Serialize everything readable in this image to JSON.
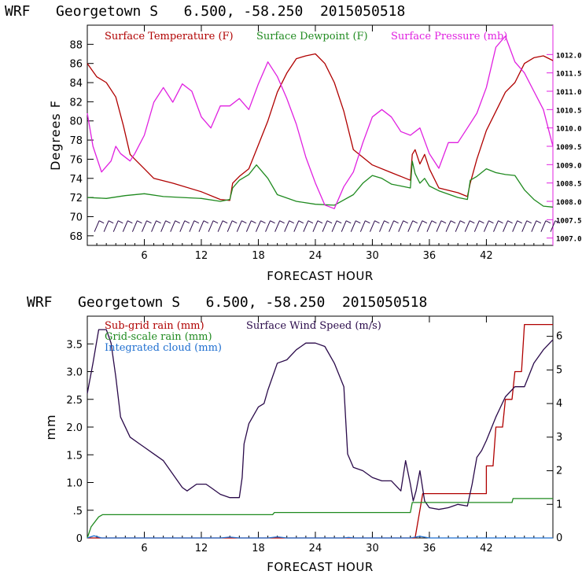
{
  "colors": {
    "red": "#b00000",
    "green": "#1f8a1f",
    "magenta": "#e020e0",
    "purple": "#2a0a4a",
    "blue": "#1f6fd0",
    "black": "#000000"
  },
  "chart_data": [
    {
      "type": "line",
      "title": "WRF   Georgetown S   6.500, -58.250  2015050518",
      "xlabel": "FORECAST HOUR",
      "ylabel": "Degrees F",
      "xlim": [
        0,
        49
      ],
      "ylim": [
        67,
        90
      ],
      "y2lim": [
        1006.8,
        1012.8
      ],
      "x_ticks": [
        "6",
        "12",
        "18",
        "24",
        "30",
        "36",
        "42"
      ],
      "y_ticks": [
        "68",
        "70",
        "72",
        "74",
        "76",
        "78",
        "80",
        "82",
        "84",
        "86",
        "88"
      ],
      "y2_ticks": [
        "1007.0",
        "1007.5",
        "1008.0",
        "1008.5",
        "1009.0",
        "1009.5",
        "1010.0",
        "1010.5",
        "1011.0",
        "1011.5",
        "1012.0"
      ],
      "legend": [
        "Surface Temperature (F)",
        "Surface Dewpoint (F)",
        "Surface Pressure (mb)"
      ],
      "series": [
        {
          "name": "Surface Temperature (F)",
          "color": "red",
          "axis": "left",
          "points": [
            [
              0,
              86
            ],
            [
              1,
              84.6
            ],
            [
              2,
              84
            ],
            [
              3,
              82.5
            ],
            [
              3.8,
              79.5
            ],
            [
              4.5,
              76.5
            ],
            [
              5,
              76
            ],
            [
              6,
              75
            ],
            [
              7,
              74
            ],
            [
              9,
              73.5
            ],
            [
              12,
              72.6
            ],
            [
              14,
              71.8
            ],
            [
              15,
              71.7
            ],
            [
              15.3,
              73.5
            ],
            [
              16,
              74.2
            ],
            [
              17,
              75
            ],
            [
              18,
              77.5
            ],
            [
              19,
              80
            ],
            [
              20,
              83
            ],
            [
              21,
              85
            ],
            [
              22,
              86.5
            ],
            [
              23,
              86.8
            ],
            [
              24,
              87
            ],
            [
              25,
              86
            ],
            [
              26,
              84
            ],
            [
              27,
              81
            ],
            [
              28,
              77
            ],
            [
              30,
              75.4
            ],
            [
              32,
              74.6
            ],
            [
              33,
              74.2
            ],
            [
              34,
              73.8
            ],
            [
              34.2,
              76.5
            ],
            [
              34.5,
              77
            ],
            [
              35,
              75.5
            ],
            [
              35.5,
              76.5
            ],
            [
              36,
              75
            ],
            [
              37,
              73
            ],
            [
              39,
              72.5
            ],
            [
              40,
              72.1
            ],
            [
              40.3,
              73.5
            ],
            [
              41,
              76
            ],
            [
              42,
              79
            ],
            [
              43,
              81
            ],
            [
              44,
              83
            ],
            [
              45,
              84
            ],
            [
              46,
              86
            ],
            [
              47,
              86.6
            ],
            [
              48,
              86.8
            ],
            [
              49,
              86.3
            ]
          ]
        },
        {
          "name": "Surface Dewpoint (F)",
          "color": "green",
          "axis": "left",
          "points": [
            [
              0,
              72
            ],
            [
              2,
              71.9
            ],
            [
              4,
              72.2
            ],
            [
              6,
              72.4
            ],
            [
              8,
              72.1
            ],
            [
              10,
              72
            ],
            [
              12,
              71.9
            ],
            [
              14,
              71.6
            ],
            [
              15,
              71.8
            ],
            [
              15.3,
              73
            ],
            [
              16,
              73.8
            ],
            [
              17,
              74.4
            ],
            [
              17.8,
              75.4
            ],
            [
              19,
              74
            ],
            [
              20,
              72.3
            ],
            [
              22,
              71.6
            ],
            [
              24,
              71.3
            ],
            [
              26,
              71.2
            ],
            [
              28,
              72.3
            ],
            [
              29,
              73.5
            ],
            [
              30,
              74.3
            ],
            [
              31,
              74
            ],
            [
              32,
              73.4
            ],
            [
              33,
              73.2
            ],
            [
              34,
              73
            ],
            [
              34.2,
              75.8
            ],
            [
              34.5,
              74.5
            ],
            [
              35,
              73.5
            ],
            [
              35.5,
              74
            ],
            [
              36,
              73.2
            ],
            [
              37,
              72.7
            ],
            [
              39,
              72
            ],
            [
              40,
              71.8
            ],
            [
              40.3,
              73.8
            ],
            [
              41,
              74.2
            ],
            [
              42,
              75
            ],
            [
              43,
              74.6
            ],
            [
              44,
              74.4
            ],
            [
              45,
              74.3
            ],
            [
              46,
              72.8
            ],
            [
              47,
              71.8
            ],
            [
              48,
              71.1
            ],
            [
              49,
              71
            ]
          ]
        },
        {
          "name": "Surface Pressure (mb)",
          "color": "magenta",
          "axis": "right",
          "points": [
            [
              0,
              1010.4
            ],
            [
              0.6,
              1009.5
            ],
            [
              1.5,
              1008.8
            ],
            [
              2.5,
              1009.1
            ],
            [
              3,
              1009.5
            ],
            [
              3.5,
              1009.3
            ],
            [
              4.5,
              1009.1
            ],
            [
              5,
              1009.3
            ],
            [
              6,
              1009.8
            ],
            [
              7,
              1010.7
            ],
            [
              8,
              1011.1
            ],
            [
              9,
              1010.7
            ],
            [
              10,
              1011.2
            ],
            [
              11,
              1011
            ],
            [
              12,
              1010.3
            ],
            [
              13,
              1010
            ],
            [
              14,
              1010.6
            ],
            [
              15,
              1010.6
            ],
            [
              16,
              1010.8
            ],
            [
              17,
              1010.5
            ],
            [
              18,
              1011.2
            ],
            [
              19,
              1011.8
            ],
            [
              20,
              1011.4
            ],
            [
              21,
              1010.8
            ],
            [
              22,
              1010.1
            ],
            [
              23,
              1009.2
            ],
            [
              24,
              1008.5
            ],
            [
              25,
              1007.9
            ],
            [
              26,
              1007.8
            ],
            [
              27,
              1008.4
            ],
            [
              28,
              1008.8
            ],
            [
              29,
              1009.6
            ],
            [
              30,
              1010.3
            ],
            [
              31,
              1010.5
            ],
            [
              32,
              1010.3
            ],
            [
              33,
              1009.9
            ],
            [
              34,
              1009.8
            ],
            [
              35,
              1010
            ],
            [
              36,
              1009.3
            ],
            [
              37,
              1008.9
            ],
            [
              38,
              1009.6
            ],
            [
              39,
              1009.6
            ],
            [
              40,
              1010
            ],
            [
              41,
              1010.4
            ],
            [
              42,
              1011.1
            ],
            [
              43,
              1012.2
            ],
            [
              44,
              1012.5
            ],
            [
              45,
              1011.8
            ],
            [
              46,
              1011.5
            ],
            [
              47,
              1011
            ],
            [
              48,
              1010.5
            ],
            [
              49,
              1009.5
            ]
          ]
        }
      ],
      "wind_barbs": {
        "y": 69,
        "x_start": 1,
        "x_end": 49,
        "step": 1
      }
    },
    {
      "type": "line",
      "title": "WRF   Georgetown S   6.500, -58.250  2015050518",
      "xlabel": "FORECAST HOUR",
      "ylabel": "mm",
      "xlim": [
        0,
        49
      ],
      "ylim": [
        0,
        4.0
      ],
      "y2lim": [
        0,
        6.6
      ],
      "x_ticks": [
        "6",
        "12",
        "18",
        "24",
        "30",
        "36",
        "42"
      ],
      "y_ticks": [
        "0",
        ".5",
        "1.0",
        "1.5",
        "2.0",
        "2.5",
        "3.0",
        "3.5"
      ],
      "y2_ticks": [
        "0",
        "1",
        "2",
        "3",
        "4",
        "5",
        "6"
      ],
      "legend": [
        "Sub-grid rain (mm)",
        "Surface Wind Speed (m/s)",
        "Grid-scale rain (mm)",
        "Integrated cloud (mm)"
      ],
      "series": [
        {
          "name": "Sub-grid rain (mm)",
          "color": "red",
          "axis": "left",
          "points": [
            [
              0,
              0
            ],
            [
              34.5,
              0
            ],
            [
              35.3,
              0.8
            ],
            [
              36,
              0.8
            ],
            [
              42,
              0.8
            ],
            [
              42,
              1.3
            ],
            [
              42.7,
              1.3
            ],
            [
              43,
              2.0
            ],
            [
              43.7,
              2.0
            ],
            [
              44,
              2.5
            ],
            [
              44.7,
              2.5
            ],
            [
              45,
              3.0
            ],
            [
              45.7,
              3.0
            ],
            [
              46,
              3.85
            ],
            [
              49,
              3.85
            ]
          ]
        },
        {
          "name": "Surface Wind Speed (m/s)",
          "color": "purple",
          "axis": "right",
          "points": [
            [
              0,
              4.3
            ],
            [
              0.6,
              5.2
            ],
            [
              1.2,
              6.2
            ],
            [
              2,
              6.2
            ],
            [
              2.5,
              5.8
            ],
            [
              3,
              4.8
            ],
            [
              3.5,
              3.6
            ],
            [
              4.5,
              3.0
            ],
            [
              5.5,
              2.8
            ],
            [
              6,
              2.7
            ],
            [
              7,
              2.5
            ],
            [
              8,
              2.3
            ],
            [
              9,
              1.9
            ],
            [
              10,
              1.5
            ],
            [
              10.5,
              1.4
            ],
            [
              11.5,
              1.6
            ],
            [
              12.5,
              1.6
            ],
            [
              13,
              1.5
            ],
            [
              14,
              1.3
            ],
            [
              15,
              1.2
            ],
            [
              16,
              1.2
            ],
            [
              16.3,
              1.8
            ],
            [
              16.5,
              2.8
            ],
            [
              17,
              3.4
            ],
            [
              18,
              3.9
            ],
            [
              18.6,
              4.0
            ],
            [
              19,
              4.4
            ],
            [
              20,
              5.2
            ],
            [
              21,
              5.3
            ],
            [
              22,
              5.6
            ],
            [
              23,
              5.8
            ],
            [
              24,
              5.8
            ],
            [
              25,
              5.7
            ],
            [
              26,
              5.2
            ],
            [
              27,
              4.5
            ],
            [
              27.4,
              2.5
            ],
            [
              28,
              2.1
            ],
            [
              29,
              2.0
            ],
            [
              30,
              1.8
            ],
            [
              31,
              1.7
            ],
            [
              32,
              1.7
            ],
            [
              33,
              1.4
            ],
            [
              33.5,
              2.3
            ],
            [
              34,
              1.6
            ],
            [
              34.3,
              1.1
            ],
            [
              34.6,
              1.4
            ],
            [
              35,
              2.0
            ],
            [
              35.5,
              1.1
            ],
            [
              36,
              0.9
            ],
            [
              37,
              0.85
            ],
            [
              38,
              0.9
            ],
            [
              39,
              1.0
            ],
            [
              40,
              0.95
            ],
            [
              40.5,
              1.6
            ],
            [
              41,
              2.4
            ],
            [
              41.5,
              2.6
            ],
            [
              42,
              2.9
            ],
            [
              43,
              3.6
            ],
            [
              44,
              4.2
            ],
            [
              45,
              4.5
            ],
            [
              46,
              4.5
            ],
            [
              47,
              5.2
            ],
            [
              48,
              5.6
            ],
            [
              49,
              5.9
            ]
          ]
        },
        {
          "name": "Grid-scale rain (mm)",
          "color": "green",
          "axis": "left",
          "points": [
            [
              0,
              0
            ],
            [
              0.4,
              0.2
            ],
            [
              1.2,
              0.38
            ],
            [
              1.6,
              0.42
            ],
            [
              14,
              0.42
            ],
            [
              19.5,
              0.42
            ],
            [
              19.7,
              0.46
            ],
            [
              34,
              0.46
            ],
            [
              34.2,
              0.64
            ],
            [
              44.7,
              0.64
            ],
            [
              44.8,
              0.71
            ],
            [
              49,
              0.71
            ]
          ]
        },
        {
          "name": "Integrated cloud (mm)",
          "color": "blue",
          "axis": "left",
          "points": [
            [
              0,
              0
            ],
            [
              0.7,
              0.04
            ],
            [
              1.5,
              0
            ],
            [
              14,
              0
            ],
            [
              15,
              0.015
            ],
            [
              16,
              0
            ],
            [
              19,
              0
            ],
            [
              20,
              0.02
            ],
            [
              21,
              0
            ],
            [
              27,
              0
            ],
            [
              27.5,
              0.01
            ],
            [
              28,
              0
            ],
            [
              34,
              0
            ],
            [
              35,
              0.03
            ],
            [
              36,
              0
            ],
            [
              49,
              0
            ]
          ]
        }
      ]
    }
  ]
}
